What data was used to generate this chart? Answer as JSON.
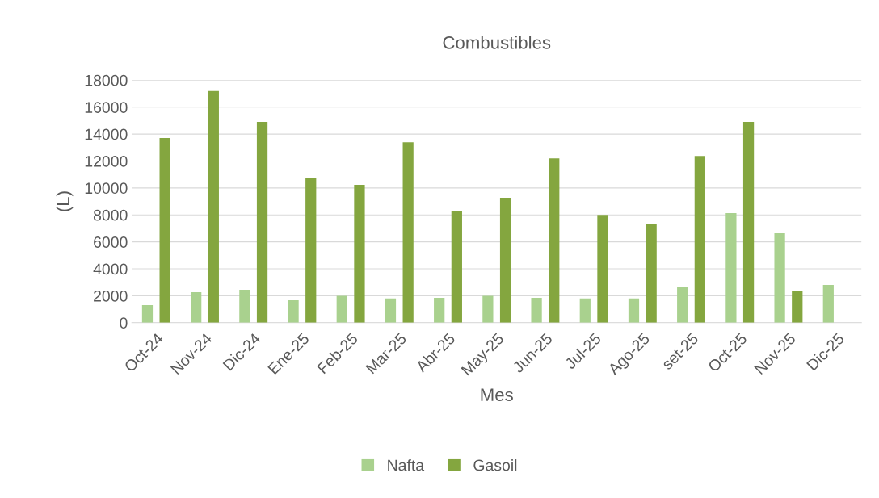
{
  "chart_data": {
    "type": "bar",
    "title": "Combustibles",
    "xlabel": "Mes",
    "ylabel": "(L)",
    "categories": [
      "Oct-24",
      "Nov-24",
      "Dic-24",
      "Ene-25",
      "Feb-25",
      "Mar-25",
      "Abr-25",
      "May-25",
      "Jun-25",
      "Jul-25",
      "Ago-25",
      "set-25",
      "Oct-25",
      "Nov-25",
      "Dic-25"
    ],
    "series": [
      {
        "name": "Nafta",
        "color": "#a9d18e",
        "values": [
          1300,
          2270,
          2450,
          1670,
          2000,
          1800,
          1850,
          2000,
          1850,
          1800,
          1800,
          2630,
          8130,
          6640,
          2800
        ]
      },
      {
        "name": "Gasoil",
        "color": "#84a63f",
        "values": [
          13700,
          17200,
          14900,
          10770,
          10230,
          13400,
          8250,
          9270,
          12200,
          8000,
          7300,
          12380,
          14900,
          2390,
          null
        ]
      }
    ],
    "ylim": [
      0,
      18000
    ],
    "yticks": [
      0,
      2000,
      4000,
      6000,
      8000,
      10000,
      12000,
      14000,
      16000,
      18000
    ],
    "grid": "y",
    "legend": "bottom"
  }
}
